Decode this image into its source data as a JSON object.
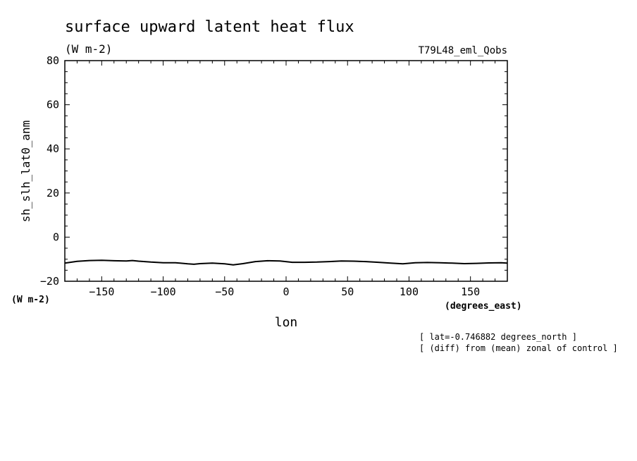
{
  "title": "surface upward latent heat flux",
  "units": "(W m-2)",
  "experiment": "T79L48_eml_Qobs",
  "ylabel": "sh_slh_lat0_anm",
  "y_units": "(W m-2)",
  "xlabel": "lon",
  "x_units": "(degrees_east)",
  "note_lat": "[ lat=-0.746882 degrees_north ]",
  "note_diff": "[ (diff) from (mean) zonal of control ]",
  "colors": {
    "line": "#000000",
    "background": "#ffffff"
  },
  "chart_data": {
    "type": "line",
    "title": "surface upward latent heat flux",
    "xlabel": "lon",
    "ylabel": "sh_slh_lat0_anm",
    "xlim": [
      -180,
      180
    ],
    "ylim": [
      -20,
      80
    ],
    "xticks": [
      -150,
      -100,
      -50,
      0,
      50,
      100,
      150
    ],
    "yticks": [
      -20,
      0,
      20,
      40,
      60,
      80
    ],
    "grid": false,
    "x": [
      -180,
      -170,
      -160,
      -150,
      -140,
      -130,
      -125,
      -120,
      -110,
      -100,
      -90,
      -80,
      -75,
      -70,
      -60,
      -50,
      -43,
      -35,
      -25,
      -15,
      -5,
      5,
      15,
      25,
      35,
      45,
      55,
      65,
      75,
      85,
      95,
      105,
      115,
      125,
      135,
      145,
      155,
      165,
      175,
      180
    ],
    "series": [
      {
        "values": [
          -11.8,
          -11.0,
          -10.6,
          -10.5,
          -10.7,
          -10.8,
          -10.6,
          -10.9,
          -11.3,
          -11.6,
          -11.6,
          -12.1,
          -12.3,
          -12.0,
          -11.8,
          -12.1,
          -12.6,
          -12.0,
          -11.1,
          -10.7,
          -10.8,
          -11.4,
          -11.4,
          -11.3,
          -11.1,
          -10.8,
          -10.9,
          -11.1,
          -11.4,
          -11.8,
          -12.1,
          -11.6,
          -11.5,
          -11.6,
          -11.8,
          -12.0,
          -11.9,
          -11.7,
          -11.6,
          -11.8
        ]
      }
    ]
  }
}
